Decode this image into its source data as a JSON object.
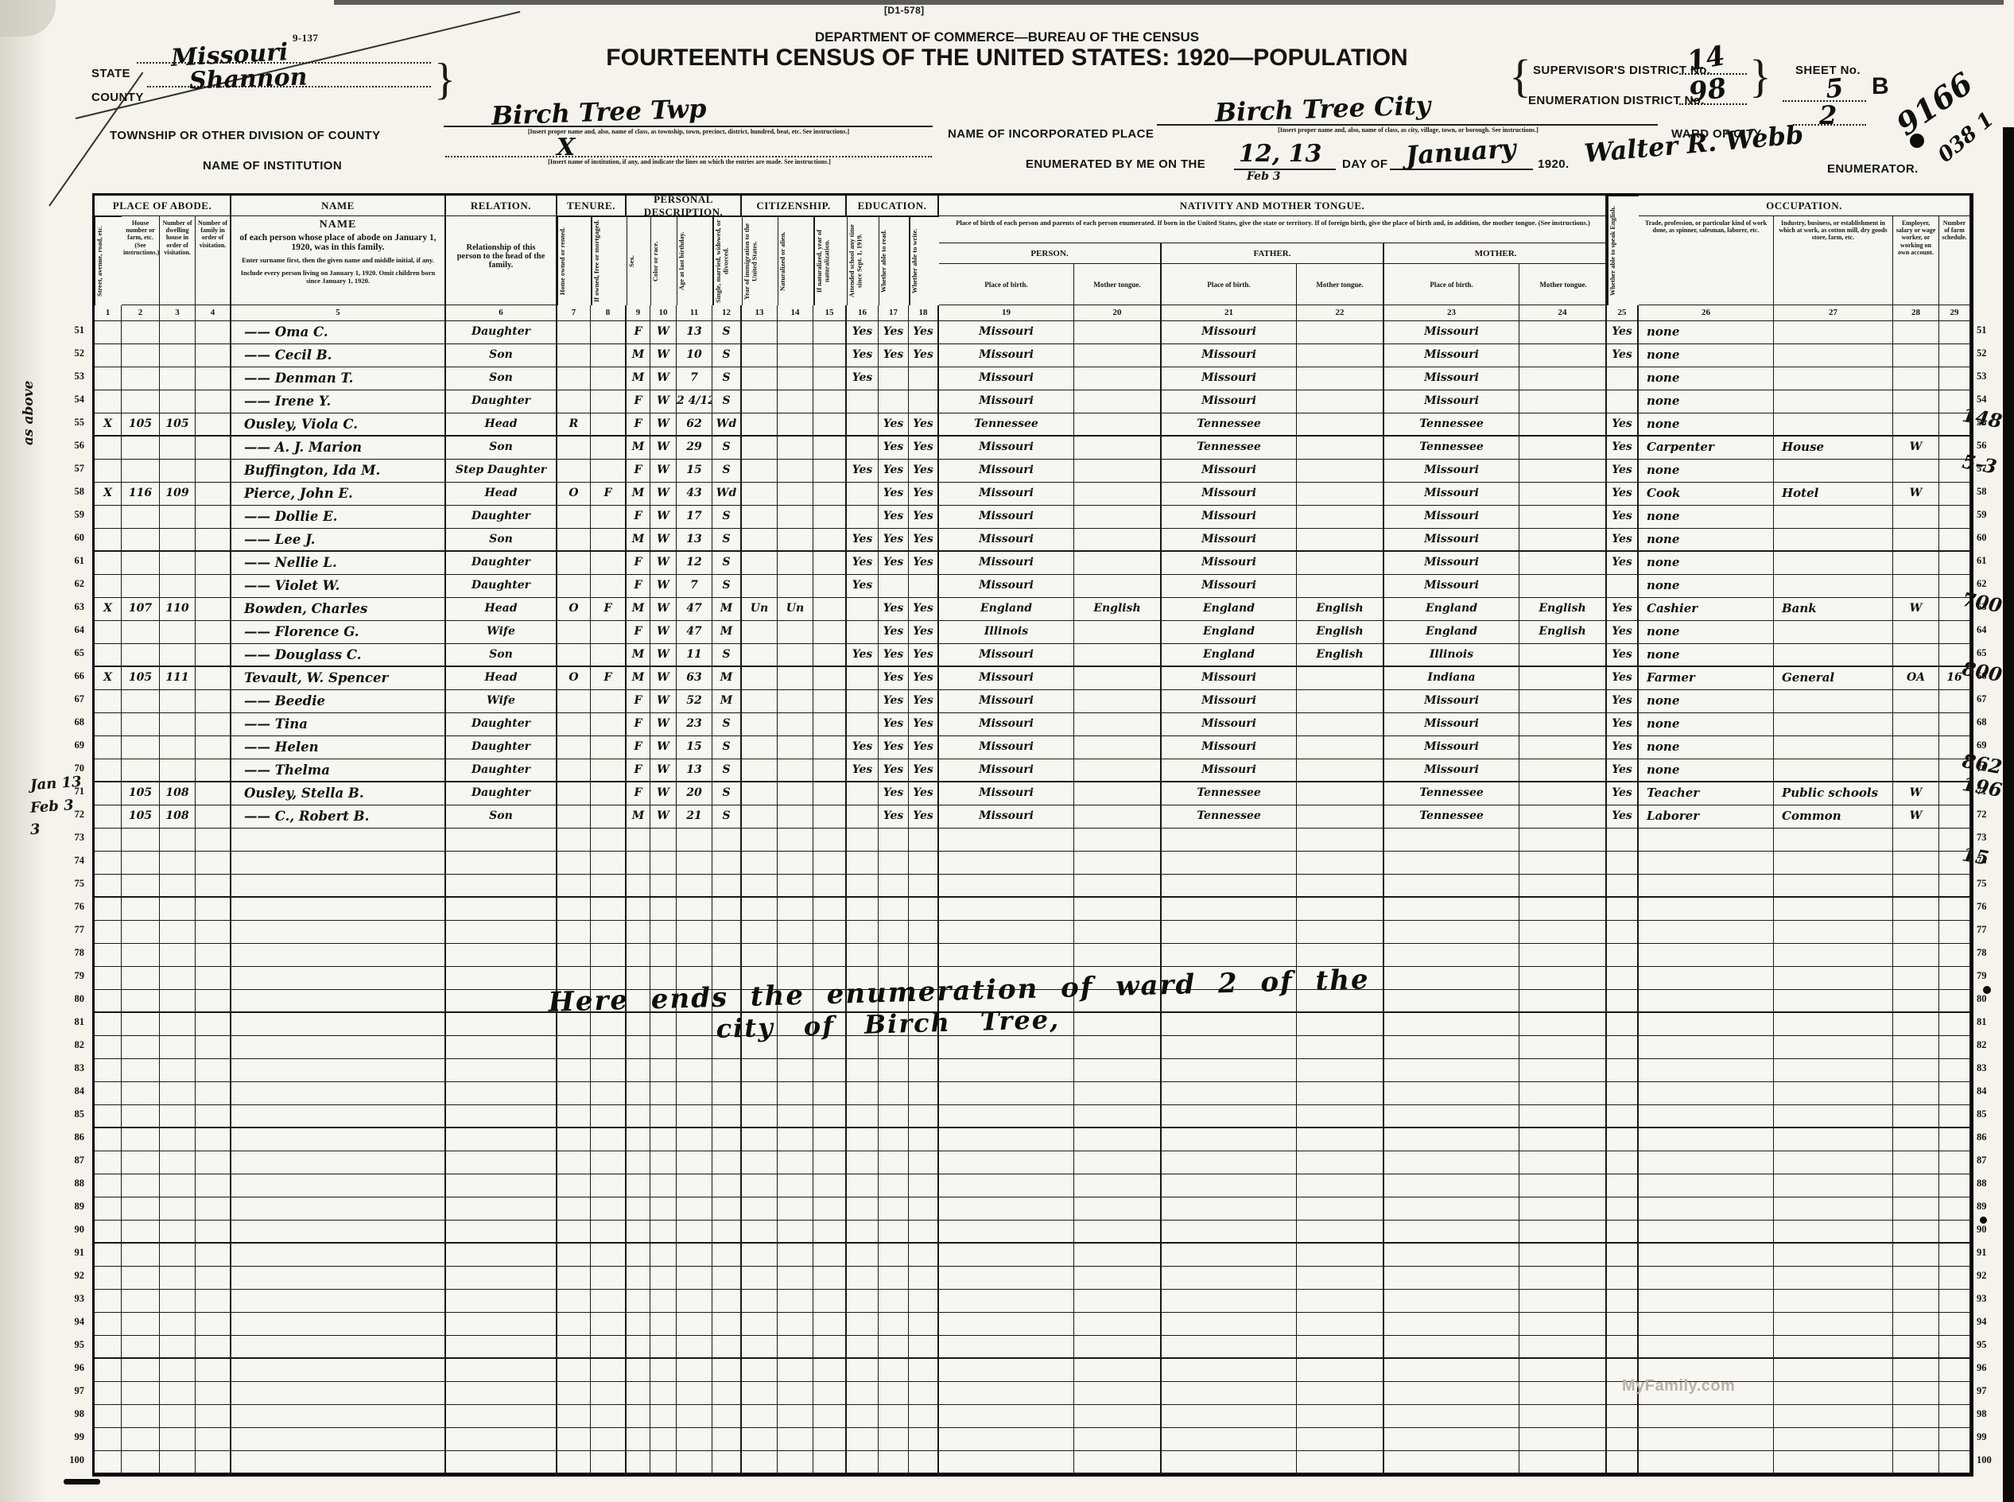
{
  "header": {
    "form_number": "9-137",
    "stamp": "[D1-578]",
    "department": "DEPARTMENT OF COMMERCE—BUREAU OF THE CENSUS",
    "title": "FOURTEENTH CENSUS OF THE UNITED STATES: 1920—POPULATION",
    "state_label": "STATE",
    "state_value": "Missouri",
    "county_label": "COUNTY",
    "county_value": "Shannon",
    "township_label": "TOWNSHIP OR OTHER DIVISION OF COUNTY",
    "township_value": "Birch Tree Twp",
    "township_note": "[Insert proper name and, also, name of class, as township, town, precinct, district, hundred, beat, etc.   See instructions.]",
    "institution_label": "NAME OF INSTITUTION",
    "institution_value": "X",
    "institution_note": "[Insert name of institution, if any, and indicate the lines on which the entries are made.   See instructions.]",
    "place_label": "NAME OF INCORPORATED PLACE",
    "place_value": "Birch Tree City",
    "place_note": "[Insert proper name and, also, name of class, as city, village, town, or borough.   See instructions.]",
    "ward_label": "WARD OF CITY",
    "ward_value": "2",
    "enumerated_prefix": "ENUMERATED BY ME ON THE",
    "enumerated_date": "12, 13",
    "enumerated_subnote": "Feb 3",
    "enumerated_mid": "DAY OF",
    "enumerated_month": "January",
    "enumerated_year": "1920.",
    "enumerator_value": "Walter R. Webb",
    "enumerator_label": "ENUMERATOR.",
    "supervisor_label": "SUPERVISOR'S DISTRICT No.",
    "supervisor_value": "14",
    "enum_district_label": "ENUMERATION DISTRICT No.",
    "enum_district_value": "98",
    "sheet_label": "SHEET No.",
    "sheet_value": "5",
    "sheet_letter": "B",
    "corner_scribble1": "9166",
    "corner_scribble2": "038 1"
  },
  "table": {
    "groups": [
      {
        "label": "PLACE OF ABODE.",
        "from": 1,
        "to": 4
      },
      {
        "label": "NAME",
        "from": 5,
        "to": 5
      },
      {
        "label": "RELATION.",
        "from": 6,
        "to": 6
      },
      {
        "label": "TENURE.",
        "from": 7,
        "to": 8
      },
      {
        "label": "PERSONAL DESCRIPTION.",
        "from": 9,
        "to": 12
      },
      {
        "label": "CITIZENSHIP.",
        "from": 13,
        "to": 15
      },
      {
        "label": "EDUCATION.",
        "from": 16,
        "to": 18
      },
      {
        "label": "NATIVITY AND MOTHER TONGUE.",
        "from": 19,
        "to": 24
      },
      {
        "label": "",
        "from": 25,
        "to": 25
      },
      {
        "label": "OCCUPATION.",
        "from": 26,
        "to": 29
      }
    ],
    "vertical_headers": {
      "1": "Street, avenue, road, etc.",
      "7": "Home owned or rented.",
      "8": "If owned, free or mortgaged.",
      "9": "Sex.",
      "10": "Color or race.",
      "11": "Age at last birthday.",
      "12": "Single, married, widowed, or divorced.",
      "13": "Year of immigration to the United States.",
      "14": "Naturalized or alien.",
      "15": "If naturalized, year of naturalization.",
      "16": "Attended school any time since Sept. 1, 1919.",
      "17": "Whether able to read.",
      "18": "Whether able to write.",
      "25": "Whether able to speak English."
    },
    "small_headers": {
      "2": "House number or farm, etc. (See instructions.)",
      "3": "Number of dwelling house in order of visitation.",
      "4": "Number of family in order of visitation.",
      "26": "Trade, profession, or particular kind of work done, as spinner, salesman, laborer, etc.",
      "27": "Industry, business, or establishment in which at work, as cotton mill, dry goods store, farm, etc.",
      "28": "Employer, salary or wage worker, or working on own account.",
      "29": "Number of farm schedule."
    },
    "name_header": {
      "title": "NAME",
      "main": "of each person whose place of abode on January 1, 1920, was in this family.",
      "sub1": "Enter surname first, then the given name and middle initial, if any.",
      "sub2": "Include every person living on January 1, 1920.  Omit children born since January 1, 1920."
    },
    "relation_header": "Relationship of this person to the head of the family.",
    "nativity": {
      "note": "Place of birth of each person and parents of each person enumerated.  If born in the United States, give the state or territory.  If of foreign birth, give the place of birth and, in addition, the mother tongue.  (See instructions.)",
      "sections": [
        "PERSON.",
        "FATHER.",
        "MOTHER."
      ],
      "sub": [
        "Place of birth.",
        "Mother tongue."
      ]
    },
    "first_line": 51,
    "last_line": 100,
    "rows": {
      "51": {
        "5": "—— Oma C.",
        "6": "Daughter",
        "9": "F",
        "10": "W",
        "11": "13",
        "12": "S",
        "16": "Yes",
        "17": "Yes",
        "18": "Yes",
        "19": "Missouri",
        "21": "Missouri",
        "23": "Missouri",
        "25": "Yes",
        "26": "none"
      },
      "52": {
        "5": "—— Cecil B.",
        "6": "Son",
        "9": "M",
        "10": "W",
        "11": "10",
        "12": "S",
        "16": "Yes",
        "17": "Yes",
        "18": "Yes",
        "19": "Missouri",
        "21": "Missouri",
        "23": "Missouri",
        "25": "Yes",
        "26": "none"
      },
      "53": {
        "5": "—— Denman T.",
        "6": "Son",
        "9": "M",
        "10": "W",
        "11": "7",
        "12": "S",
        "16": "Yes",
        "19": "Missouri",
        "21": "Missouri",
        "23": "Missouri",
        "26": "none"
      },
      "54": {
        "5": "—— Irene Y.",
        "6": "Daughter",
        "9": "F",
        "10": "W",
        "11": "2 4/12",
        "12": "S",
        "19": "Missouri",
        "21": "Missouri",
        "23": "Missouri",
        "26": "none"
      },
      "55": {
        "1": "X",
        "2": "105",
        "3": "105",
        "5": "Ousley, Viola C.",
        "6": "Head",
        "7": "R",
        "9": "F",
        "10": "W",
        "11": "62",
        "12": "Wd",
        "17": "Yes",
        "18": "Yes",
        "19": "Tennessee",
        "21": "Tennessee",
        "23": "Tennessee",
        "25": "Yes",
        "26": "none"
      },
      "56": {
        "5": "—— A. J. Marion",
        "6": "Son",
        "9": "M",
        "10": "W",
        "11": "29",
        "12": "S",
        "17": "Yes",
        "18": "Yes",
        "19": "Missouri",
        "21": "Tennessee",
        "23": "Tennessee",
        "25": "Yes",
        "26": "Carpenter",
        "27": "House",
        "28": "W"
      },
      "57": {
        "5": "Buffington, Ida M.",
        "6": "Step Daughter",
        "9": "F",
        "10": "W",
        "11": "15",
        "12": "S",
        "16": "Yes",
        "17": "Yes",
        "18": "Yes",
        "19": "Missouri",
        "21": "Missouri",
        "23": "Missouri",
        "25": "Yes",
        "26": "none"
      },
      "58": {
        "1": "X",
        "2": "116",
        "3": "109",
        "5": "Pierce, John E.",
        "6": "Head",
        "7": "O",
        "8": "F",
        "9": "M",
        "10": "W",
        "11": "43",
        "12": "Wd",
        "17": "Yes",
        "18": "Yes",
        "19": "Missouri",
        "21": "Missouri",
        "23": "Missouri",
        "25": "Yes",
        "26": "Cook",
        "27": "Hotel",
        "28": "W"
      },
      "59": {
        "5": "—— Dollie E.",
        "6": "Daughter",
        "9": "F",
        "10": "W",
        "11": "17",
        "12": "S",
        "17": "Yes",
        "18": "Yes",
        "19": "Missouri",
        "21": "Missouri",
        "23": "Missouri",
        "25": "Yes",
        "26": "none"
      },
      "60": {
        "5": "—— Lee J.",
        "6": "Son",
        "9": "M",
        "10": "W",
        "11": "13",
        "12": "S",
        "16": "Yes",
        "17": "Yes",
        "18": "Yes",
        "19": "Missouri",
        "21": "Missouri",
        "23": "Missouri",
        "25": "Yes",
        "26": "none"
      },
      "61": {
        "5": "—— Nellie L.",
        "6": "Daughter",
        "9": "F",
        "10": "W",
        "11": "12",
        "12": "S",
        "16": "Yes",
        "17": "Yes",
        "18": "Yes",
        "19": "Missouri",
        "21": "Missouri",
        "23": "Missouri",
        "25": "Yes",
        "26": "none"
      },
      "62": {
        "5": "—— Violet W.",
        "6": "Daughter",
        "9": "F",
        "10": "W",
        "11": "7",
        "12": "S",
        "16": "Yes",
        "19": "Missouri",
        "21": "Missouri",
        "23": "Missouri",
        "26": "none"
      },
      "63": {
        "1": "X",
        "2": "107",
        "3": "110",
        "5": "Bowden, Charles",
        "6": "Head",
        "7": "O",
        "8": "F",
        "9": "M",
        "10": "W",
        "11": "47",
        "12": "M",
        "13": "Un",
        "14": "Un",
        "17": "Yes",
        "18": "Yes",
        "19": "England",
        "20": "English",
        "21": "England",
        "22": "English",
        "23": "England",
        "24": "English",
        "25": "Yes",
        "26": "Cashier",
        "27": "Bank",
        "28": "W"
      },
      "64": {
        "5": "—— Florence G.",
        "6": "Wife",
        "9": "F",
        "10": "W",
        "11": "47",
        "12": "M",
        "17": "Yes",
        "18": "Yes",
        "19": "Illinois",
        "21": "England",
        "22": "English",
        "23": "England",
        "24": "English",
        "25": "Yes",
        "26": "none"
      },
      "65": {
        "5": "—— Douglass C.",
        "6": "Son",
        "9": "M",
        "10": "W",
        "11": "11",
        "12": "S",
        "16": "Yes",
        "17": "Yes",
        "18": "Yes",
        "19": "Missouri",
        "21": "England",
        "22": "English",
        "23": "Illinois",
        "25": "Yes",
        "26": "none"
      },
      "66": {
        "1": "X",
        "2": "105",
        "3": "111",
        "5": "Tevault, W. Spencer",
        "6": "Head",
        "7": "O",
        "8": "F",
        "9": "M",
        "10": "W",
        "11": "63",
        "12": "M",
        "17": "Yes",
        "18": "Yes",
        "19": "Missouri",
        "21": "Missouri",
        "23": "Indiana",
        "25": "Yes",
        "26": "Farmer",
        "27": "General",
        "28": "OA",
        "29": "16"
      },
      "67": {
        "5": "—— Beedie",
        "6": "Wife",
        "9": "F",
        "10": "W",
        "11": "52",
        "12": "M",
        "17": "Yes",
        "18": "Yes",
        "19": "Missouri",
        "21": "Missouri",
        "23": "Missouri",
        "25": "Yes",
        "26": "none"
      },
      "68": {
        "5": "—— Tina",
        "6": "Daughter",
        "9": "F",
        "10": "W",
        "11": "23",
        "12": "S",
        "17": "Yes",
        "18": "Yes",
        "19": "Missouri",
        "21": "Missouri",
        "23": "Missouri",
        "25": "Yes",
        "26": "none"
      },
      "69": {
        "5": "—— Helen",
        "6": "Daughter",
        "9": "F",
        "10": "W",
        "11": "15",
        "12": "S",
        "16": "Yes",
        "17": "Yes",
        "18": "Yes",
        "19": "Missouri",
        "21": "Missouri",
        "23": "Missouri",
        "25": "Yes",
        "26": "none"
      },
      "70": {
        "5": "—— Thelma",
        "6": "Daughter",
        "9": "F",
        "10": "W",
        "11": "13",
        "12": "S",
        "16": "Yes",
        "17": "Yes",
        "18": "Yes",
        "19": "Missouri",
        "21": "Missouri",
        "23": "Missouri",
        "25": "Yes",
        "26": "none"
      },
      "71": {
        "2": "105",
        "3": "108",
        "5": "Ousley, Stella B.",
        "6": "Daughter",
        "9": "F",
        "10": "W",
        "11": "20",
        "12": "S",
        "17": "Yes",
        "18": "Yes",
        "19": "Missouri",
        "21": "Tennessee",
        "23": "Tennessee",
        "25": "Yes",
        "26": "Teacher",
        "27": "Public schools",
        "28": "W"
      },
      "72": {
        "2": "105",
        "3": "108",
        "5": "—— C., Robert B.",
        "6": "Son",
        "9": "M",
        "10": "W",
        "11": "21",
        "12": "S",
        "17": "Yes",
        "18": "Yes",
        "19": "Missouri",
        "21": "Tennessee",
        "23": "Tennessee",
        "25": "Yes",
        "26": "Laborer",
        "27": "Common",
        "28": "W"
      }
    }
  },
  "annotations": {
    "left": [
      {
        "line": 71,
        "text": "Jan 13"
      },
      {
        "line": 72,
        "text": "Feb 3"
      },
      {
        "line": 73,
        "text": "3"
      }
    ],
    "left_rotated": "as above",
    "right": [
      {
        "line": 55,
        "text": "148"
      },
      {
        "line": 57,
        "text": "5-3"
      },
      {
        "line": 63,
        "text": "700"
      },
      {
        "line": 66,
        "text": "800"
      },
      {
        "line": 70,
        "text": "862"
      },
      {
        "line": 71,
        "text": "196"
      },
      {
        "line": 74,
        "text": "15"
      }
    ],
    "endnote_line1": "Here ends the enumeration of ward 2 of the",
    "endnote_line2": "city of Birch Tree,",
    "watermark": "MyFamily.com"
  },
  "colors": {
    "paper": "#f5f3ec",
    "ink": "#100f0c",
    "print": "#1a1815"
  }
}
